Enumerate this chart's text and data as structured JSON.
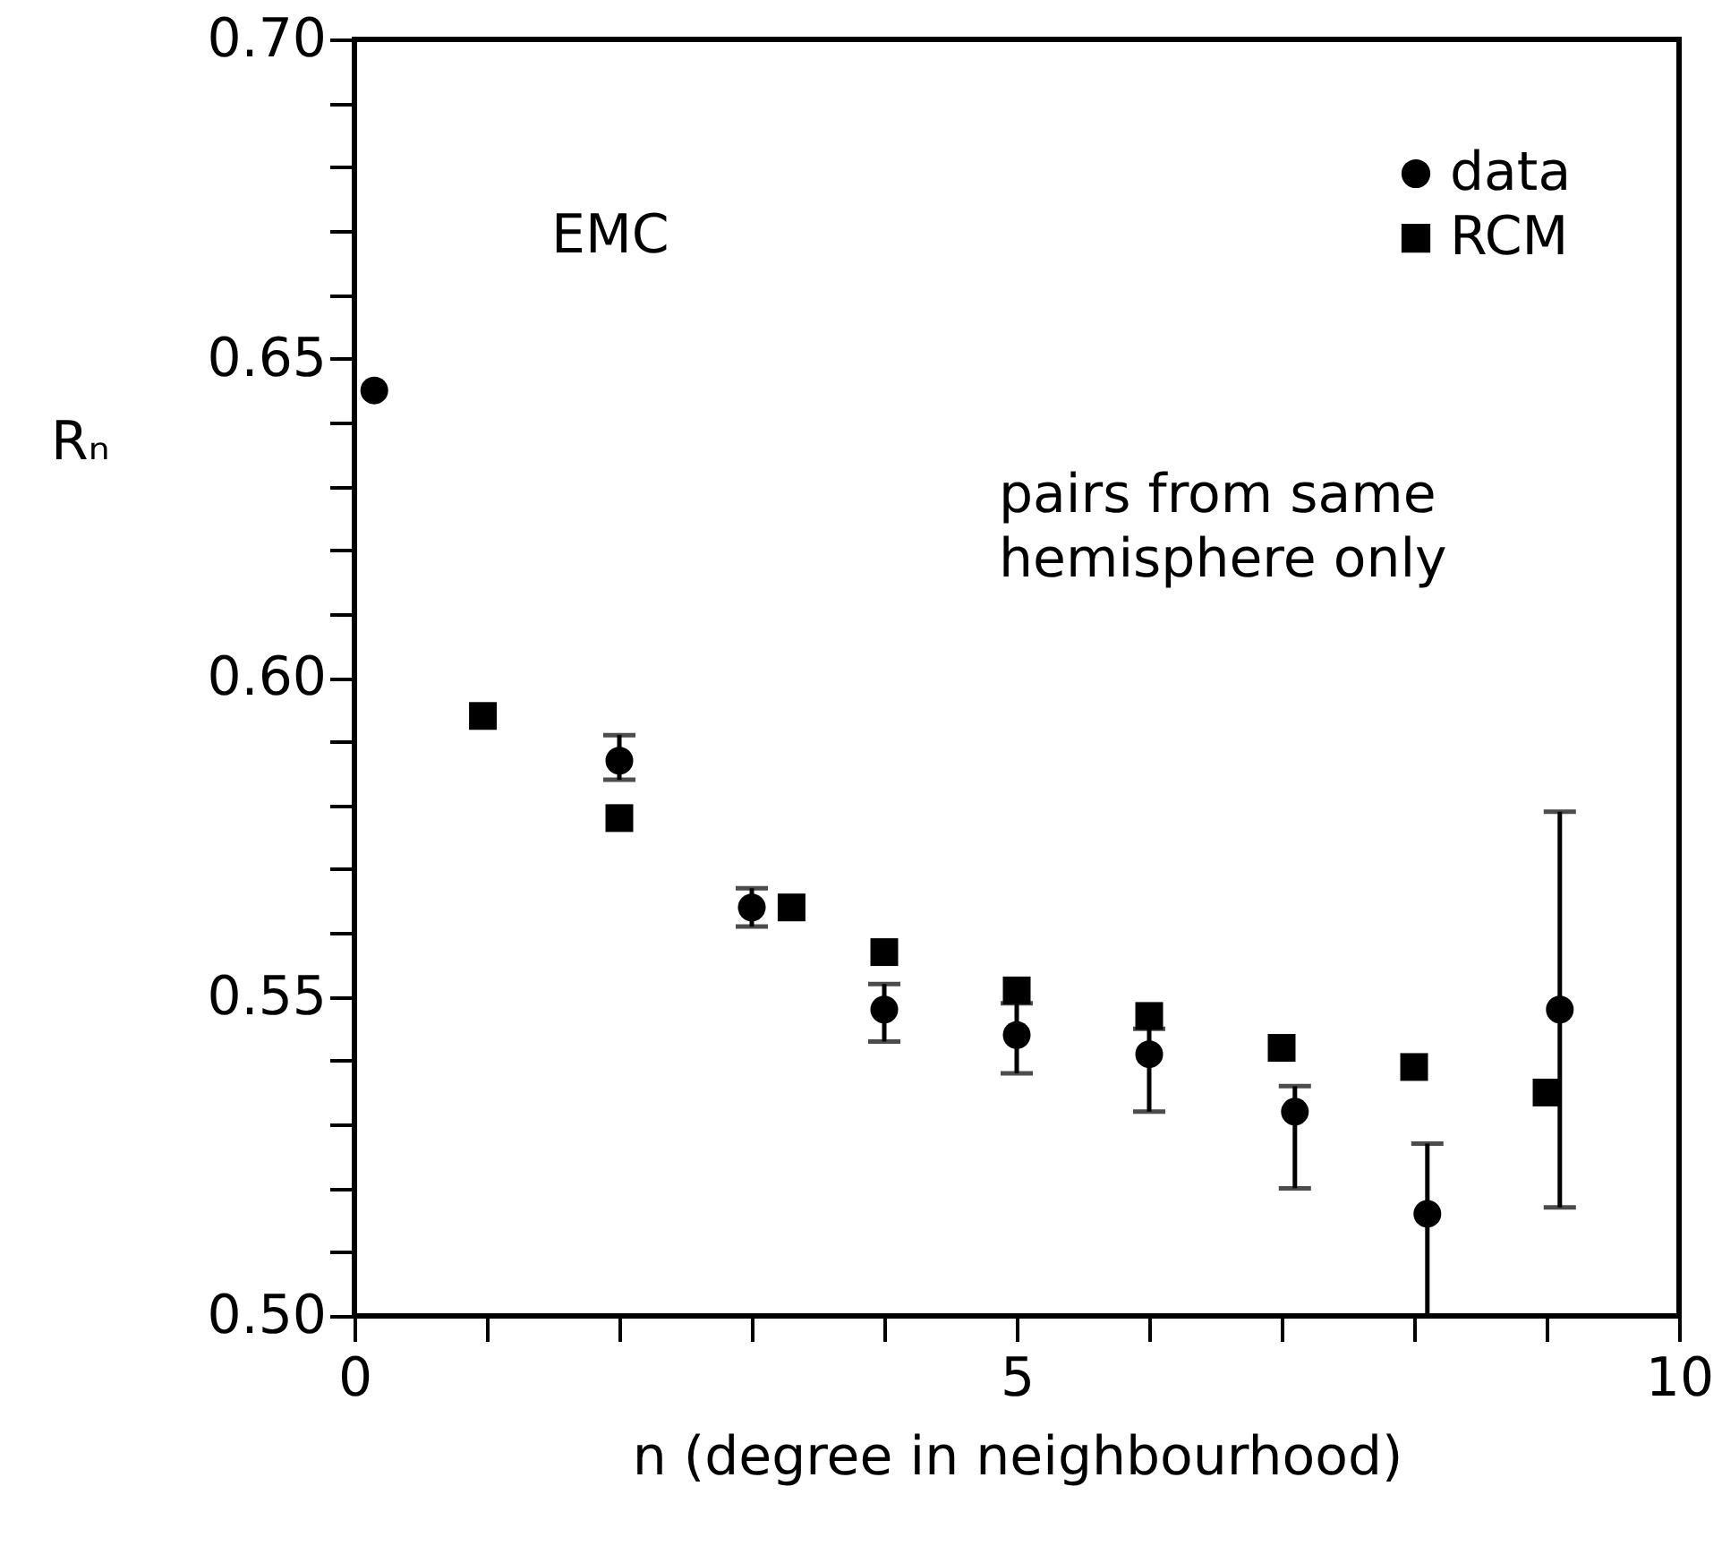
{
  "chart_data": {
    "type": "scatter",
    "xlabel": "n (degree in neighbourhood)",
    "ylabel": "Rₙ",
    "annotations": [
      "EMC",
      "pairs from same hemisphere only"
    ],
    "series": [
      {
        "name": "data",
        "color": "#000000",
        "marker": "circle",
        "x": [
          0.15,
          2,
          3,
          4,
          5,
          6,
          7.1,
          8.1,
          9.1
        ],
        "values": [
          0.645,
          0.587,
          0.564,
          0.548,
          0.544,
          0.541,
          0.532,
          0.516,
          0.548
        ],
        "errors": [
          null,
          [
            0.584,
            0.591
          ],
          [
            0.561,
            0.567
          ],
          [
            0.543,
            0.552
          ],
          [
            0.538,
            0.549
          ],
          [
            0.532,
            0.545
          ],
          [
            0.52,
            0.536
          ],
          [
            0.5,
            0.527
          ],
          [
            0.517,
            0.579
          ]
        ]
      },
      {
        "name": "RCM",
        "color": "#000000",
        "marker": "square",
        "x": [
          0.97,
          2,
          3.3,
          4,
          5,
          6,
          7,
          8,
          9
        ],
        "values": [
          0.594,
          0.578,
          0.564,
          0.557,
          0.551,
          0.547,
          0.542,
          0.539,
          0.535
        ]
      }
    ],
    "xlim": [
      0,
      10
    ],
    "xticks": [
      0,
      {
        "value": 1,
        "label": null
      },
      {
        "value": 2,
        "label": null
      },
      {
        "value": 3,
        "label": null
      },
      {
        "value": 4,
        "label": null
      },
      5,
      {
        "value": 6,
        "label": null
      },
      {
        "value": 7,
        "label": null
      },
      {
        "value": 8,
        "label": null
      },
      {
        "value": 9,
        "label": null
      },
      10
    ],
    "ylim": [
      0.5,
      0.7
    ],
    "yticks": [
      {
        "value": 0.5,
        "label": "0.50"
      },
      {
        "value": 0.51,
        "label": null
      },
      {
        "value": 0.52,
        "label": null
      },
      {
        "value": 0.53,
        "label": null
      },
      {
        "value": 0.54,
        "label": null
      },
      {
        "value": 0.55,
        "label": "0.55"
      },
      {
        "value": 0.56,
        "label": null
      },
      {
        "value": 0.57,
        "label": null
      },
      {
        "value": 0.58,
        "label": null
      },
      {
        "value": 0.59,
        "label": null
      },
      {
        "value": 0.6,
        "label": "0.60"
      },
      {
        "value": 0.61,
        "label": null
      },
      {
        "value": 0.62,
        "label": null
      },
      {
        "value": 0.63,
        "label": null
      },
      {
        "value": 0.64,
        "label": null
      },
      {
        "value": 0.65,
        "label": "0.65"
      },
      {
        "value": 0.66,
        "label": null
      },
      {
        "value": 0.67,
        "label": null
      },
      {
        "value": 0.68,
        "label": null
      },
      {
        "value": 0.69,
        "label": null
      },
      {
        "value": 0.7,
        "label": "0.70"
      }
    ],
    "grid": false,
    "legend": "top right"
  }
}
